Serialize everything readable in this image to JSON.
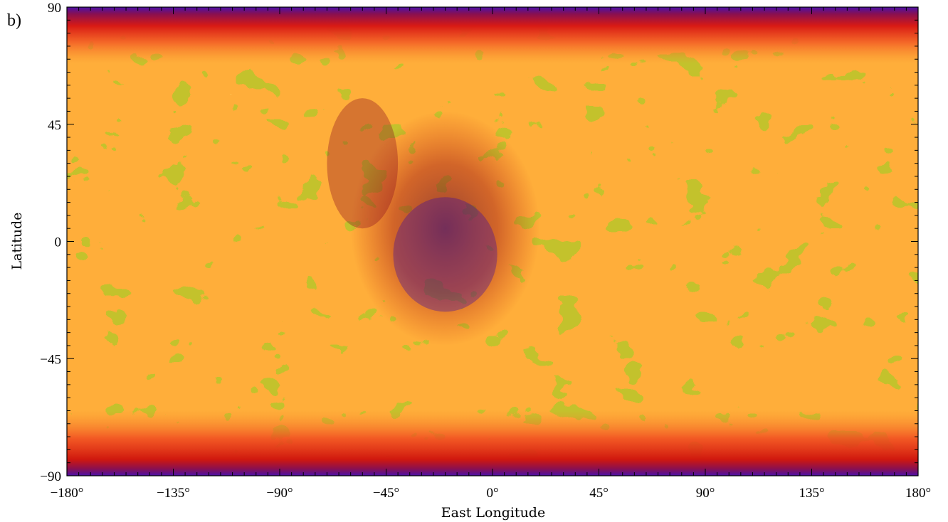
{
  "chart_data": {
    "type": "heatmap",
    "panel_label": "b)",
    "xlabel": "East Longitude",
    "ylabel": "Latitude",
    "xlim": [
      -180,
      180
    ],
    "ylim": [
      -90,
      90
    ],
    "x_ticks": [
      -180,
      -135,
      -90,
      -45,
      0,
      45,
      90,
      135,
      180
    ],
    "x_tick_labels": [
      "−180°",
      "−135°",
      "−90°",
      "−45°",
      "0°",
      "45°",
      "90°",
      "135°",
      "180°"
    ],
    "y_ticks": [
      90,
      45,
      0,
      -45,
      -90
    ],
    "y_tick_labels": [
      "90",
      "45",
      "0",
      "−45",
      "−90"
    ],
    "colormap": [
      "#3a0aa0",
      "#6a0a3a",
      "#a80c14",
      "#e02010",
      "#f86a28",
      "#ffae3a",
      "#a9c62a",
      "#ffff8c"
    ],
    "projection": "equirectangular",
    "grid": false
  }
}
